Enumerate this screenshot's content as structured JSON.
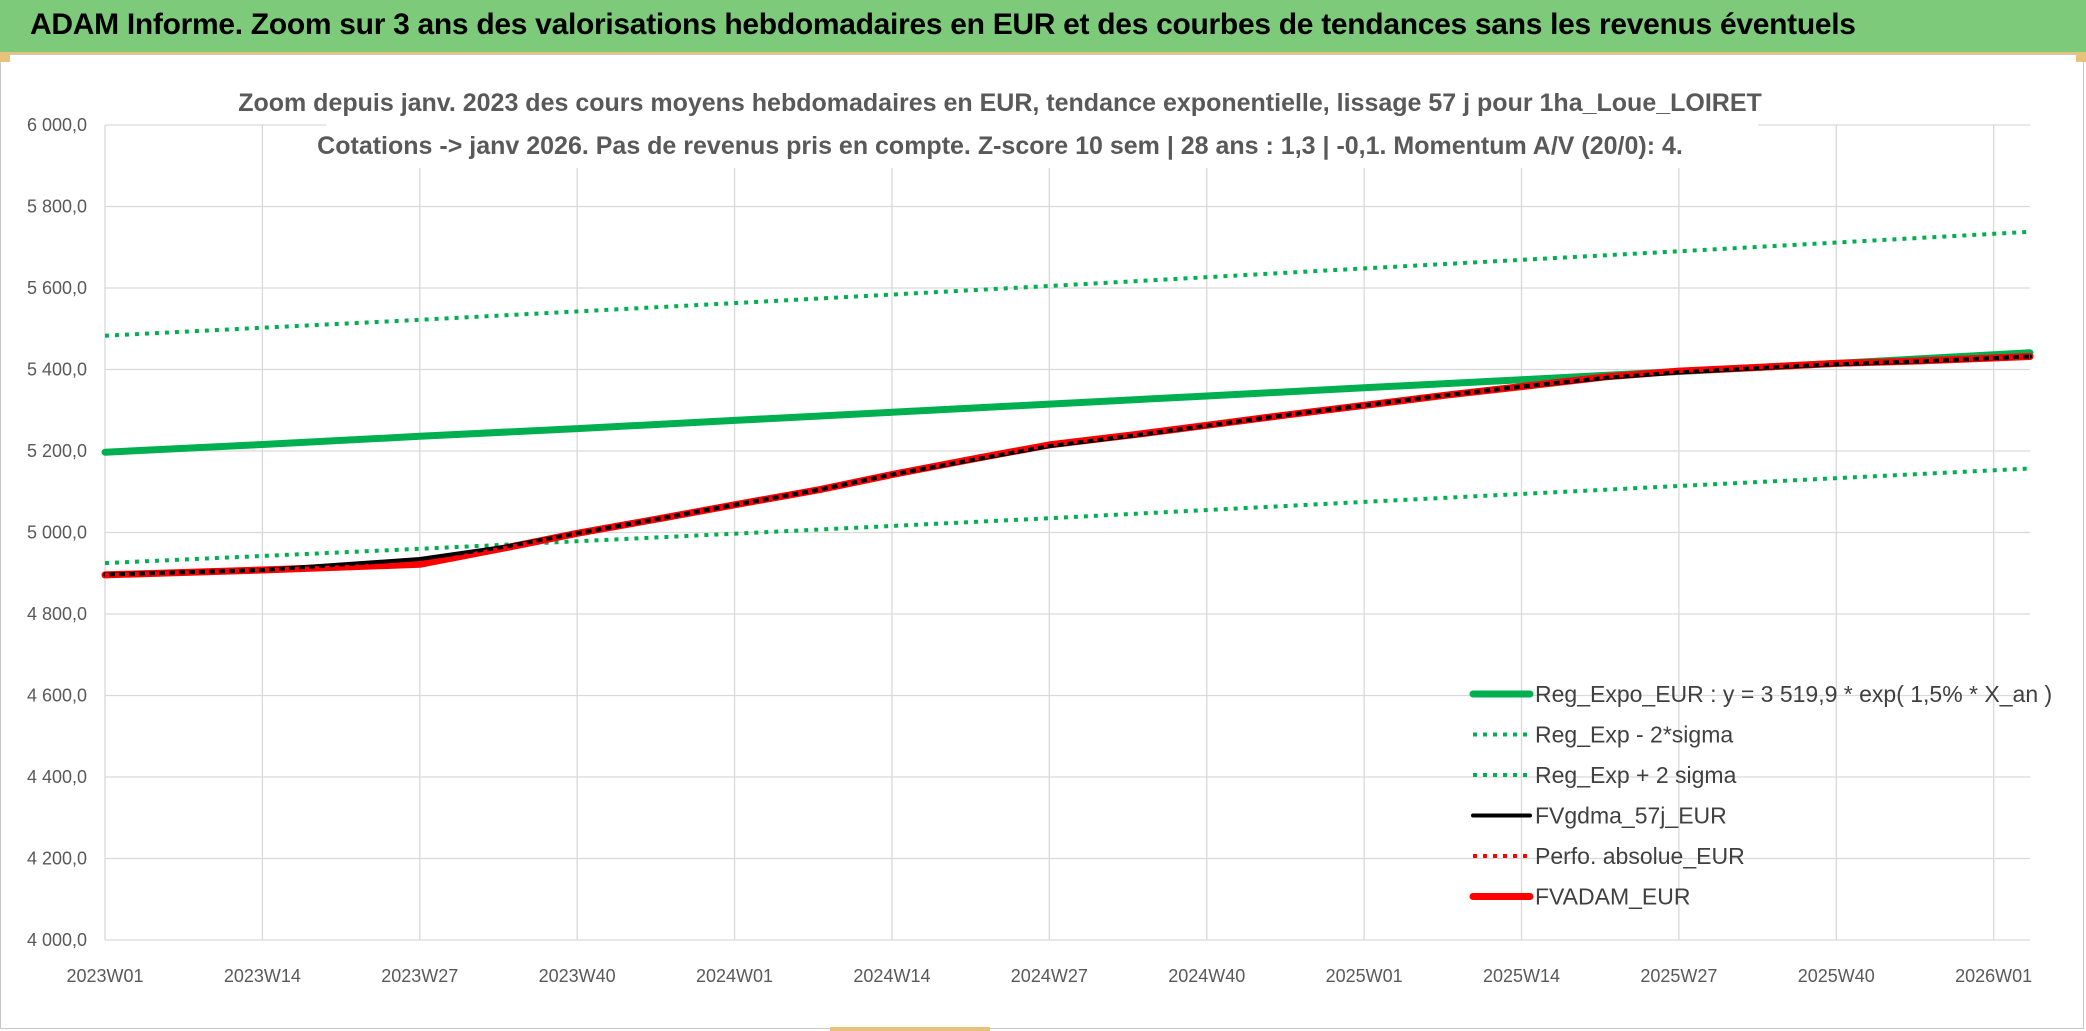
{
  "header": {
    "title": "ADAM Informe. Zoom sur 3 ans des valorisations hebdomadaires en EUR et des courbes de tendances sans les revenus éventuels"
  },
  "chart_data": {
    "type": "line",
    "title_line1": "Zoom depuis janv. 2023 des cours moyens hebdomadaires en EUR, tendance exponentielle, lissage 57 j pour 1ha_Loue_LOIRET",
    "title_line2": "Cotations -> janv 2026. Pas de revenus pris en compte. Z-score 10 sem | 28 ans : 1,3 | -0,1. Momentum A/V (20/0): 4.",
    "ylim": [
      4000,
      6000
    ],
    "y_ticks": [
      "4 000,0",
      "4 200,0",
      "4 400,0",
      "4 600,0",
      "4 800,0",
      "5 000,0",
      "5 200,0",
      "5 400,0",
      "5 600,0",
      "5 800,0",
      "6 000,0"
    ],
    "x_range": [
      0,
      159
    ],
    "x_ticks": [
      {
        "label": "2023W01",
        "x": 0
      },
      {
        "label": "2023W14",
        "x": 13
      },
      {
        "label": "2023W27",
        "x": 26
      },
      {
        "label": "2023W40",
        "x": 39
      },
      {
        "label": "2024W01",
        "x": 52
      },
      {
        "label": "2024W14",
        "x": 65
      },
      {
        "label": "2024W27",
        "x": 78
      },
      {
        "label": "2024W40",
        "x": 91
      },
      {
        "label": "2025W01",
        "x": 104
      },
      {
        "label": "2025W14",
        "x": 117
      },
      {
        "label": "2025W27",
        "x": 130
      },
      {
        "label": "2025W40",
        "x": 143
      },
      {
        "label": "2026W01",
        "x": 156
      }
    ],
    "grid": true,
    "legend_position": "bottom-right",
    "series": [
      {
        "name": "Reg_Expo_EUR : y = 3 519,9 * exp( 1,5% *  X_an )",
        "color": "#00b050",
        "style": "thick",
        "x": [
          0,
          13,
          26,
          39,
          52,
          65,
          78,
          91,
          104,
          117,
          130,
          143,
          159
        ],
        "y": [
          5197,
          5216,
          5236,
          5255,
          5275,
          5295,
          5315,
          5335,
          5355,
          5375,
          5395,
          5415,
          5441
        ]
      },
      {
        "name": "Reg_Exp - 2*sigma",
        "color": "#00b050",
        "style": "dotted",
        "x": [
          0,
          26,
          52,
          78,
          104,
          130,
          159
        ],
        "y": [
          4925,
          4960,
          4997,
          5035,
          5075,
          5114,
          5157
        ]
      },
      {
        "name": "Reg_Exp + 2 sigma",
        "color": "#00b050",
        "style": "dotted",
        "x": [
          0,
          26,
          52,
          78,
          104,
          130,
          159
        ],
        "y": [
          5483,
          5522,
          5563,
          5605,
          5648,
          5690,
          5738
        ]
      },
      {
        "name": "FVgdma_57j_EUR",
        "color": "#000000",
        "style": "solid",
        "x": [
          0,
          13,
          26,
          33,
          39,
          46,
          52,
          59,
          65,
          72,
          78,
          85,
          91,
          98,
          104,
          111,
          117,
          124,
          130,
          137,
          143,
          150,
          159
        ],
        "y": [
          4897,
          4908,
          4935,
          4965,
          4998,
          5035,
          5068,
          5105,
          5142,
          5180,
          5212,
          5238,
          5262,
          5290,
          5312,
          5338,
          5358,
          5380,
          5393,
          5404,
          5413,
          5420,
          5432
        ]
      },
      {
        "name": "Perfo. absolue_EUR",
        "color": "#ff0000",
        "style": "dotted",
        "x": [
          0,
          13,
          26,
          33,
          39,
          46,
          52,
          59,
          65,
          72,
          78,
          85,
          91,
          98,
          104,
          111,
          117,
          124,
          130,
          137,
          143,
          150,
          159
        ],
        "y": [
          4896,
          4908,
          4922,
          4962,
          4998,
          5035,
          5068,
          5105,
          5142,
          5182,
          5215,
          5240,
          5263,
          5290,
          5312,
          5338,
          5358,
          5382,
          5396,
          5406,
          5415,
          5421,
          5432
        ]
      },
      {
        "name": "FVADAM_EUR",
        "color": "#ff0000",
        "style": "thick",
        "x": [
          0,
          13,
          26,
          33,
          39,
          46,
          52,
          59,
          65,
          72,
          78,
          85,
          91,
          98,
          104,
          111,
          117,
          124,
          130,
          137,
          143,
          150,
          159
        ],
        "y": [
          4896,
          4908,
          4922,
          4962,
          4998,
          5035,
          5068,
          5105,
          5142,
          5182,
          5215,
          5240,
          5263,
          5290,
          5312,
          5338,
          5358,
          5382,
          5396,
          5406,
          5415,
          5421,
          5432
        ]
      }
    ]
  }
}
